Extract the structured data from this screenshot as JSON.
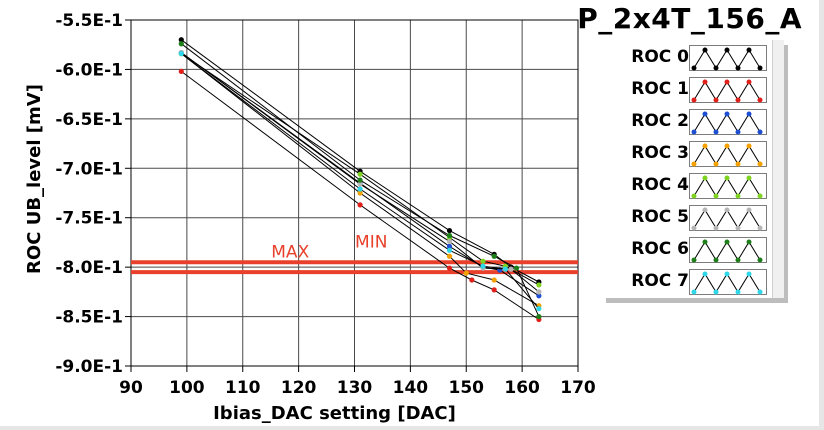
{
  "title": "P_2x4T_156_A",
  "chart_data": {
    "type": "line",
    "xlabel": "Ibias_DAC setting [DAC]",
    "ylabel": "ROC UB_level [mV]",
    "xlim": [
      90,
      170
    ],
    "ylim": [
      -0.9,
      -0.55
    ],
    "xticks": [
      90,
      100,
      110,
      120,
      130,
      140,
      150,
      160,
      170
    ],
    "xtick_labels": [
      "90",
      "100",
      "110",
      "120",
      "130",
      "140",
      "150",
      "160",
      "170"
    ],
    "yticks": [
      -0.55,
      -0.6,
      -0.65,
      -0.7,
      -0.75,
      -0.8,
      -0.85,
      -0.9
    ],
    "ytick_labels": [
      "-5.5E-1",
      "-6.0E-1",
      "-6.5E-1",
      "-7.0E-1",
      "-7.5E-1",
      "-8.0E-1",
      "-8.5E-1",
      "-9.0E-1"
    ],
    "grid": true,
    "legend_position": "right",
    "thresholds": [
      {
        "label": "MAX",
        "value": -0.795,
        "color": "#e8402a"
      },
      {
        "label": "MIN",
        "value": -0.805,
        "color": "#e8402a"
      }
    ],
    "threshold_labels": [
      {
        "text": "MAX",
        "x": 118.5,
        "y": -0.79
      },
      {
        "text": "MIN",
        "x": 133.0,
        "y": -0.78
      }
    ],
    "series": [
      {
        "name": "ROC 0",
        "color": "#000000",
        "x": [
          99,
          131,
          147,
          155,
          158,
          163
        ],
        "y": [
          -0.57,
          -0.703,
          -0.763,
          -0.787,
          -0.8,
          -0.815
        ]
      },
      {
        "name": "ROC 1",
        "color": "#e0201b",
        "x": [
          99,
          131,
          147,
          151,
          155,
          163
        ],
        "y": [
          -0.602,
          -0.737,
          -0.801,
          -0.813,
          -0.823,
          -0.853
        ]
      },
      {
        "name": "ROC 2",
        "color": "#1e4fd0",
        "x": [
          99,
          131,
          147,
          153,
          156,
          163
        ],
        "y": [
          -0.583,
          -0.715,
          -0.779,
          -0.8,
          -0.803,
          -0.829
        ]
      },
      {
        "name": "ROC 3",
        "color": "#f2a100",
        "x": [
          99,
          131,
          147,
          150,
          155,
          163
        ],
        "y": [
          -0.584,
          -0.725,
          -0.789,
          -0.806,
          -0.813,
          -0.839
        ]
      },
      {
        "name": "ROC 4",
        "color": "#7ed321",
        "x": [
          99,
          131,
          147,
          153,
          157,
          163
        ],
        "y": [
          -0.584,
          -0.706,
          -0.77,
          -0.794,
          -0.799,
          -0.818
        ]
      },
      {
        "name": "ROC 5",
        "color": "#b5b5b5",
        "x": [
          99,
          131,
          147,
          153,
          158,
          163
        ],
        "y": [
          -0.583,
          -0.716,
          -0.774,
          -0.801,
          -0.802,
          -0.825
        ]
      },
      {
        "name": "ROC 6",
        "color": "#1e7f1a",
        "x": [
          99,
          131,
          147,
          155,
          159,
          163
        ],
        "y": [
          -0.574,
          -0.712,
          -0.768,
          -0.789,
          -0.801,
          -0.85
        ]
      },
      {
        "name": "ROC 7",
        "color": "#2fd6e8",
        "x": [
          99,
          131,
          147,
          153,
          157,
          163
        ],
        "y": [
          -0.584,
          -0.721,
          -0.783,
          -0.799,
          -0.802,
          -0.842
        ]
      }
    ]
  }
}
